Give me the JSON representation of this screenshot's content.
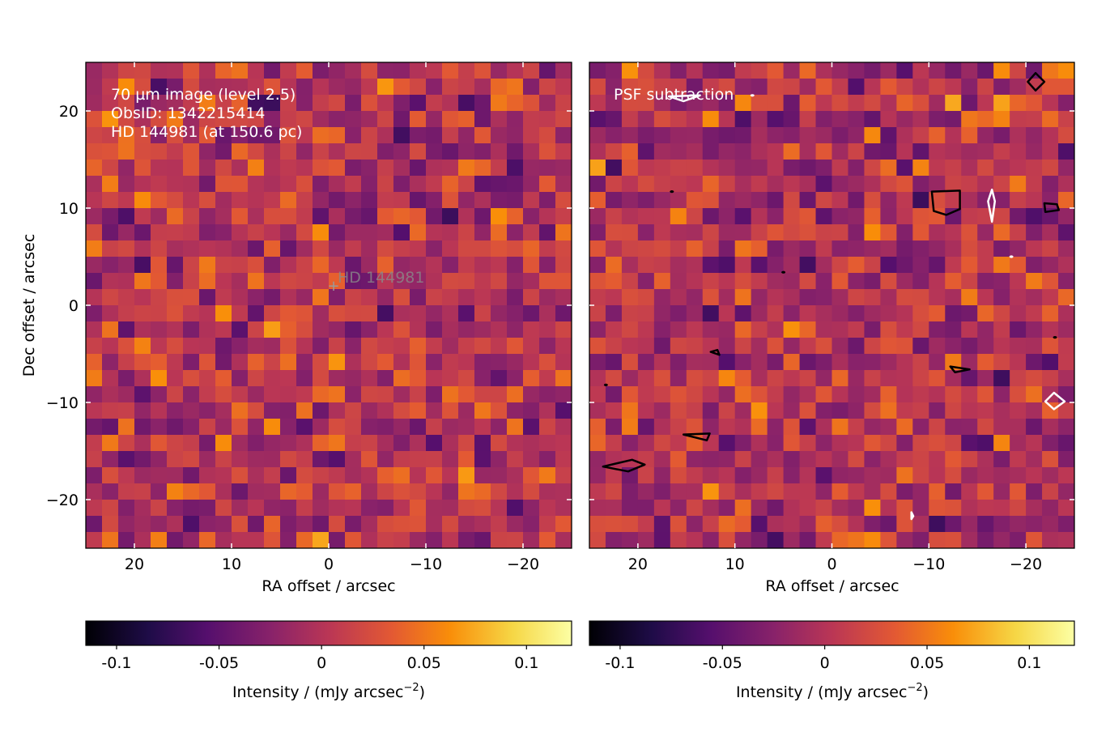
{
  "chart_data": [
    {
      "type": "heatmap",
      "panel": "left",
      "annotations": [
        "70 µm image (level 2.5)",
        "ObsID: 1342215414",
        "HD 144981 (at 150.6 pc)"
      ],
      "star_marker": {
        "label": "HD 144981",
        "ra": -0.5,
        "dec": 2
      },
      "xlabel": "RA offset / arcsec",
      "ylabel": "Dec offset / arcsec",
      "xlim": [
        25,
        -25
      ],
      "ylim": [
        -25,
        25
      ],
      "xticks": [
        20,
        10,
        0,
        -10,
        -20
      ],
      "yticks": [
        -20,
        -10,
        0,
        10,
        20
      ],
      "colorbar": {
        "label": "Intensity / (mJy arcsec",
        "label_sup": "−2",
        "label_end": ")",
        "ticks": [
          -0.1,
          -0.05,
          0,
          0.05,
          0.1
        ],
        "tick_labels": [
          "-0.1",
          "-0.05",
          "0",
          "0.05",
          "0.1"
        ],
        "range": [
          -0.115,
          0.122
        ],
        "colormap": "inferno"
      },
      "notes": "30x30 pixel noise map, values approx -0.115 to 0.122 mJy/arcsec^2; bright pixels near (-12,10), (0,3), (21,-16), (-20,10); darkest at (-22,-9.5)"
    },
    {
      "type": "heatmap",
      "panel": "right",
      "annotations": [
        "PSF subtraction"
      ],
      "xlabel": "RA offset / arcsec",
      "xlim": [
        25,
        -25
      ],
      "ylim": [
        -25,
        25
      ],
      "xticks": [
        20,
        10,
        0,
        -10,
        -20
      ],
      "yticks": [
        -20,
        -10,
        0,
        10,
        20
      ],
      "contours": {
        "positive_color": "#000000",
        "negative_color": "#ffffff"
      },
      "colorbar": {
        "label": "Intensity / (mJy arcsec",
        "label_sup": "−2",
        "label_end": ")",
        "ticks": [
          -0.1,
          -0.05,
          0,
          0.05,
          0.1
        ],
        "tick_labels": [
          "-0.1",
          "-0.05",
          "0",
          "0.05",
          "0.1"
        ],
        "range": [
          -0.115,
          0.122
        ],
        "colormap": "inferno"
      }
    }
  ],
  "tick_label_format": {
    "minus": "−"
  }
}
